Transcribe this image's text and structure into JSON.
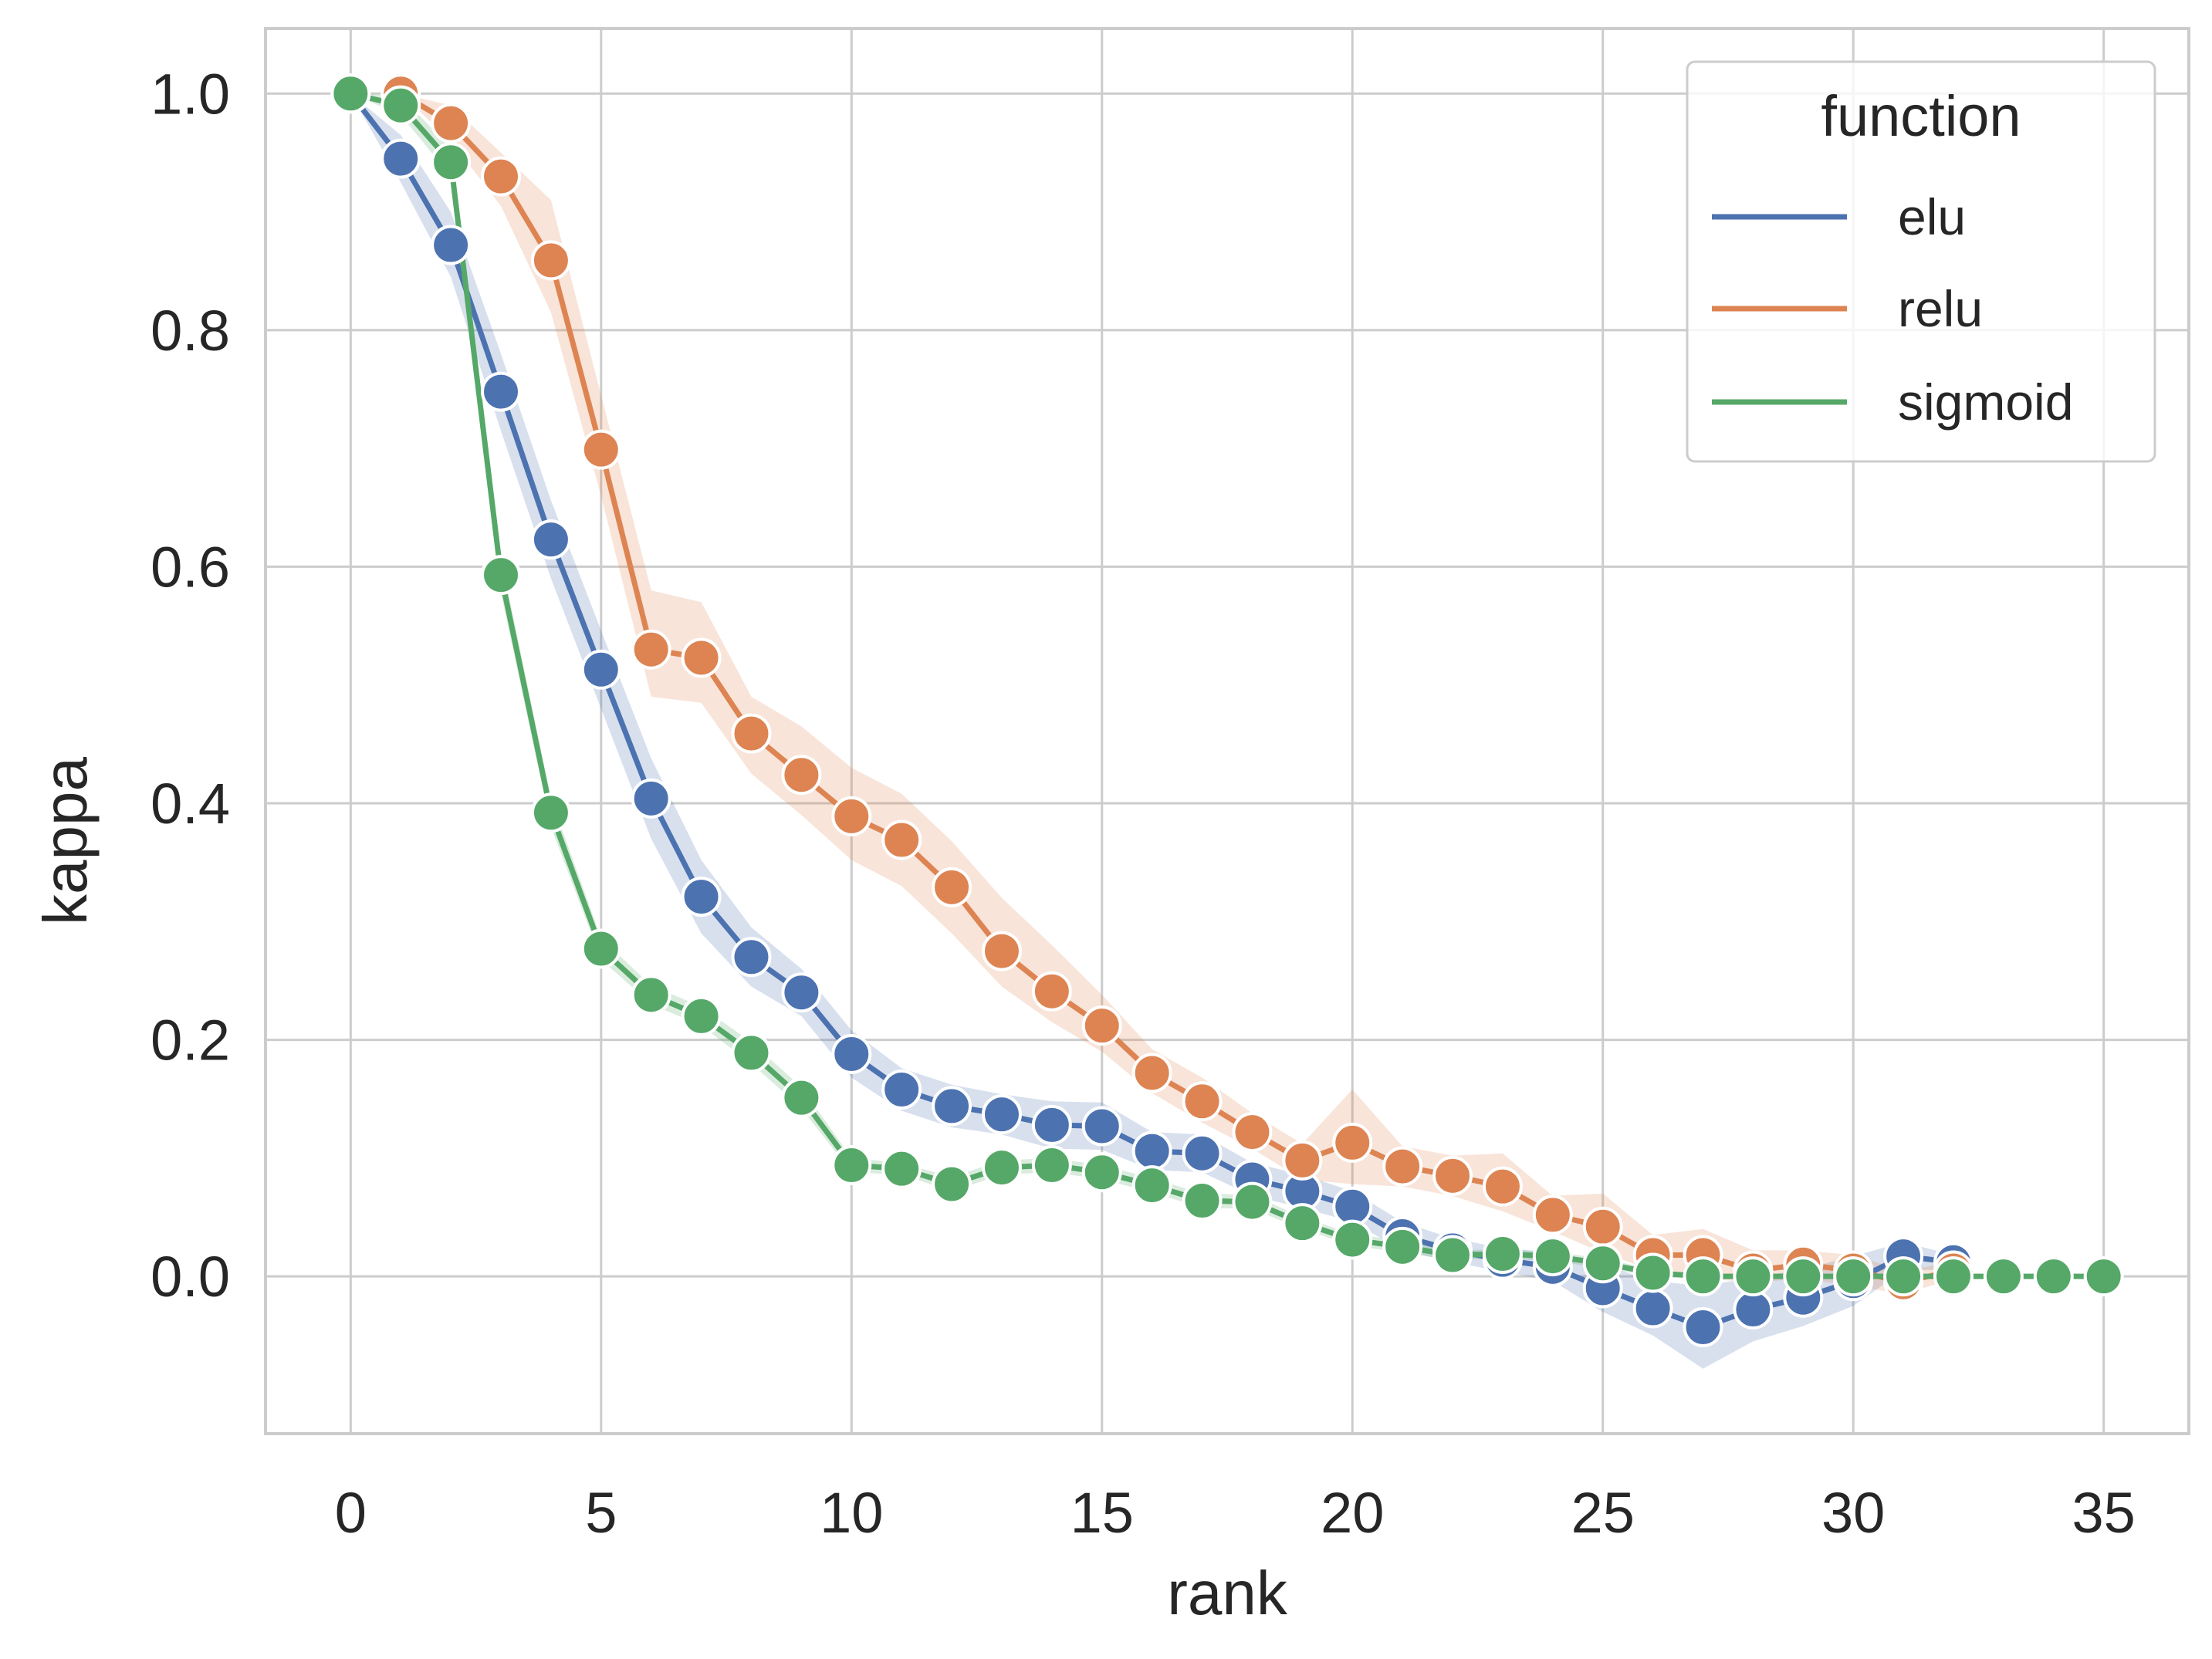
{
  "chart_data": {
    "type": "line",
    "title": "",
    "xlabel": "rank",
    "ylabel": "kappa",
    "xlim": [
      -1.7,
      36.7
    ],
    "ylim": [
      -0.133,
      1.055
    ],
    "xticks": [
      0,
      5,
      10,
      15,
      20,
      25,
      30,
      35
    ],
    "yticks": [
      0.0,
      0.2,
      0.4,
      0.6,
      0.8,
      1.0
    ],
    "xtick_labels": [
      "0",
      "5",
      "10",
      "15",
      "20",
      "25",
      "30",
      "35"
    ],
    "ytick_labels": [
      "0.0",
      "0.2",
      "0.4",
      "0.6",
      "0.8",
      "1.0"
    ],
    "grid": true,
    "legend": {
      "title": "function",
      "position": "top-right"
    },
    "series": [
      {
        "name": "elu",
        "color": "#4c72b0",
        "x": [
          0,
          1,
          2,
          3,
          4,
          5,
          6,
          7,
          8,
          9,
          10,
          11,
          12,
          13,
          14,
          15,
          16,
          17,
          18,
          19,
          20,
          21,
          22,
          23,
          24,
          25,
          26,
          27,
          28,
          29,
          30,
          31,
          32
        ],
        "values": [
          1.0,
          0.945,
          0.872,
          0.748,
          0.623,
          0.513,
          0.404,
          0.321,
          0.27,
          0.24,
          0.188,
          0.158,
          0.144,
          0.137,
          0.128,
          0.127,
          0.106,
          0.104,
          0.082,
          0.072,
          0.059,
          0.034,
          0.022,
          0.014,
          0.008,
          -0.01,
          -0.027,
          -0.043,
          -0.028,
          -0.018,
          -0.004,
          0.017,
          0.012
        ],
        "band_low": [
          1.0,
          0.925,
          0.845,
          0.715,
          0.59,
          0.48,
          0.37,
          0.29,
          0.245,
          0.22,
          0.168,
          0.14,
          0.126,
          0.12,
          0.108,
          0.107,
          0.09,
          0.088,
          0.068,
          0.058,
          0.046,
          0.022,
          0.012,
          0.004,
          -0.004,
          -0.03,
          -0.05,
          -0.078,
          -0.055,
          -0.042,
          -0.025,
          0.005,
          0.006
        ],
        "band_high": [
          1.0,
          0.965,
          0.9,
          0.78,
          0.656,
          0.546,
          0.438,
          0.352,
          0.295,
          0.26,
          0.208,
          0.176,
          0.162,
          0.154,
          0.148,
          0.147,
          0.122,
          0.12,
          0.096,
          0.086,
          0.072,
          0.046,
          0.032,
          0.024,
          0.02,
          0.01,
          -0.004,
          -0.008,
          -0.001,
          0.006,
          0.017,
          0.029,
          0.018
        ]
      },
      {
        "name": "relu",
        "color": "#dd8452",
        "x": [
          1,
          2,
          3,
          4,
          5,
          6,
          7,
          8,
          9,
          10,
          11,
          12,
          13,
          14,
          15,
          16,
          17,
          18,
          19,
          20,
          21,
          22,
          23,
          24,
          25,
          26,
          27,
          28,
          29,
          30,
          31,
          32
        ],
        "values": [
          1.0,
          0.975,
          0.93,
          0.859,
          0.699,
          0.53,
          0.523,
          0.459,
          0.424,
          0.389,
          0.369,
          0.329,
          0.275,
          0.241,
          0.212,
          0.172,
          0.148,
          0.122,
          0.098,
          0.113,
          0.093,
          0.085,
          0.076,
          0.052,
          0.042,
          0.018,
          0.018,
          0.005,
          0.01,
          0.005,
          -0.005,
          0.005
        ],
        "band_low": [
          1.0,
          0.96,
          0.905,
          0.815,
          0.66,
          0.49,
          0.485,
          0.425,
          0.39,
          0.352,
          0.33,
          0.29,
          0.245,
          0.215,
          0.19,
          0.155,
          0.13,
          0.108,
          0.082,
          0.078,
          0.076,
          0.068,
          0.055,
          0.038,
          0.02,
          0.005,
          -0.002,
          -0.005,
          -0.002,
          -0.008,
          -0.015,
          -0.002
        ],
        "band_high": [
          1.0,
          0.99,
          0.95,
          0.91,
          0.745,
          0.58,
          0.57,
          0.49,
          0.465,
          0.43,
          0.408,
          0.368,
          0.32,
          0.28,
          0.238,
          0.192,
          0.168,
          0.138,
          0.112,
          0.158,
          0.11,
          0.102,
          0.104,
          0.068,
          0.07,
          0.035,
          0.04,
          0.022,
          0.022,
          0.018,
          0.005,
          0.012
        ]
      },
      {
        "name": "sigmoid",
        "color": "#55a868",
        "x": [
          0,
          1,
          2,
          3,
          4,
          5,
          6,
          7,
          8,
          9,
          10,
          11,
          12,
          13,
          14,
          15,
          16,
          17,
          18,
          19,
          20,
          21,
          22,
          23,
          24,
          25,
          26,
          27,
          28,
          29,
          30,
          31,
          32,
          33,
          34,
          35
        ],
        "values": [
          1.0,
          0.99,
          0.942,
          0.593,
          0.392,
          0.277,
          0.238,
          0.22,
          0.189,
          0.151,
          0.094,
          0.091,
          0.078,
          0.092,
          0.094,
          0.088,
          0.077,
          0.064,
          0.063,
          0.045,
          0.031,
          0.025,
          0.018,
          0.019,
          0.017,
          0.011,
          0.003,
          0.0,
          0.0,
          0.0,
          0.0,
          0.0,
          0.0,
          0.0,
          0.0,
          0.0
        ],
        "band_low": [
          1.0,
          0.982,
          0.93,
          0.578,
          0.38,
          0.268,
          0.23,
          0.212,
          0.18,
          0.142,
          0.088,
          0.086,
          0.072,
          0.086,
          0.088,
          0.082,
          0.071,
          0.058,
          0.057,
          0.04,
          0.026,
          0.02,
          0.014,
          0.015,
          0.013,
          0.007,
          0.0,
          0.0,
          0.0,
          0.0,
          0.0,
          0.0,
          0.0,
          0.0,
          0.0,
          0.0
        ],
        "band_high": [
          1.0,
          0.998,
          0.954,
          0.608,
          0.404,
          0.286,
          0.246,
          0.228,
          0.198,
          0.16,
          0.1,
          0.096,
          0.084,
          0.098,
          0.1,
          0.094,
          0.083,
          0.07,
          0.069,
          0.05,
          0.036,
          0.03,
          0.022,
          0.023,
          0.021,
          0.015,
          0.006,
          0.0,
          0.0,
          0.0,
          0.0,
          0.0,
          0.0,
          0.0,
          0.0,
          0.0
        ]
      }
    ]
  }
}
